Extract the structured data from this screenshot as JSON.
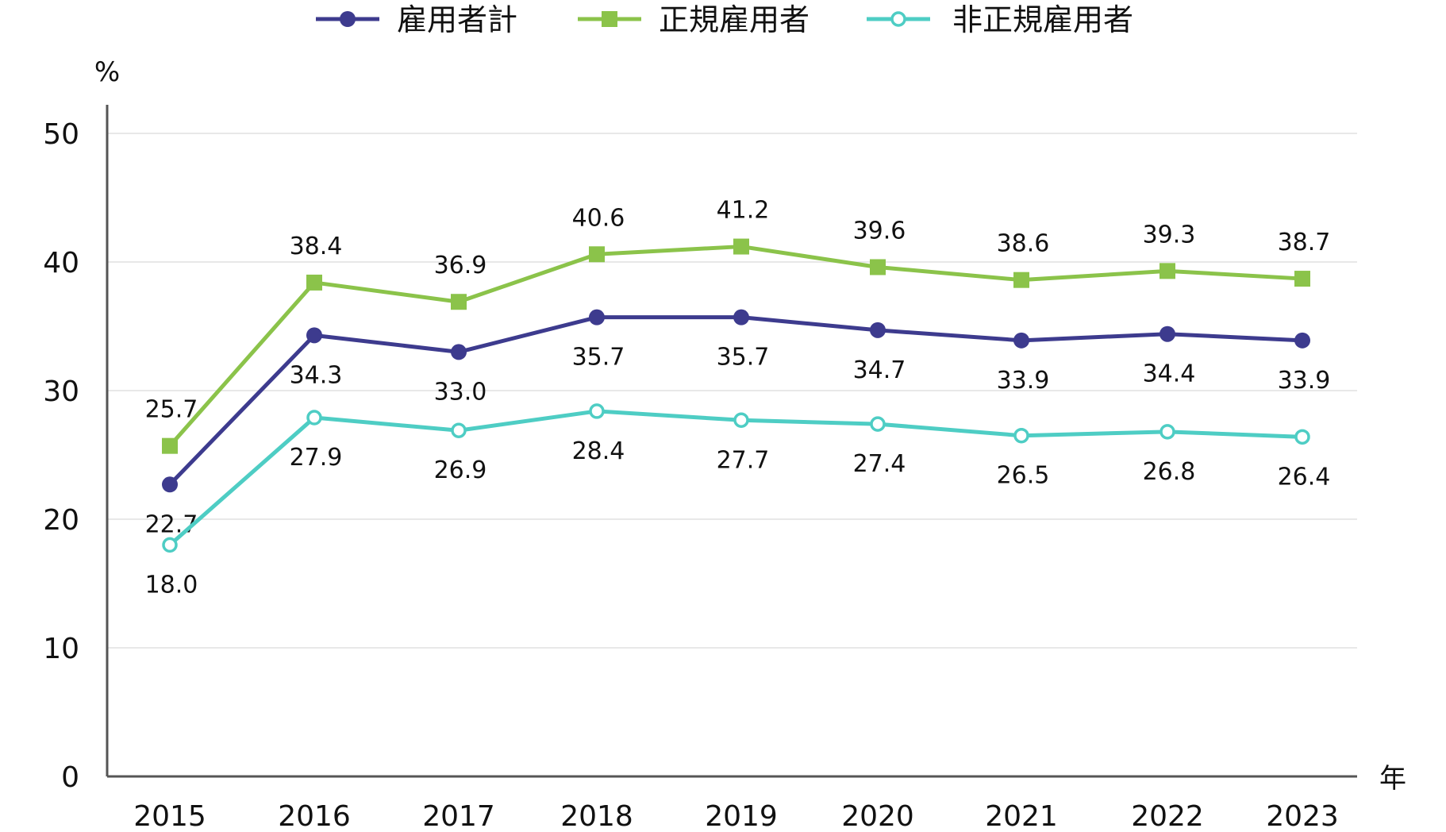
{
  "chart_data": {
    "type": "line",
    "title": "",
    "xlabel": "",
    "ylabel": "",
    "y_unit": "%",
    "x_unit": "年",
    "categories": [
      "2015",
      "2016",
      "2017",
      "2018",
      "2019",
      "2020",
      "2021",
      "2022",
      "2023"
    ],
    "ylim": [
      0,
      50
    ],
    "y_ticks": [
      0,
      10,
      20,
      30,
      40,
      50
    ],
    "grid": true,
    "legend_position": "top-center",
    "series": [
      {
        "name": "雇用者計",
        "color": "#3d3b8e",
        "marker": "circle-filled",
        "label_position": "below",
        "values": [
          22.7,
          34.3,
          33.0,
          35.7,
          35.7,
          34.7,
          33.9,
          34.4,
          33.9
        ]
      },
      {
        "name": "正規雇用者",
        "color": "#8bc34a",
        "marker": "square-filled",
        "label_position": "above",
        "values": [
          25.7,
          38.4,
          36.9,
          40.6,
          41.2,
          39.6,
          38.6,
          39.3,
          38.7
        ]
      },
      {
        "name": "非正規雇用者",
        "color": "#4ecdc4",
        "marker": "circle-open",
        "label_position": "below",
        "values": [
          18.0,
          27.9,
          26.9,
          28.4,
          27.7,
          27.4,
          26.5,
          26.8,
          26.4
        ]
      }
    ]
  }
}
